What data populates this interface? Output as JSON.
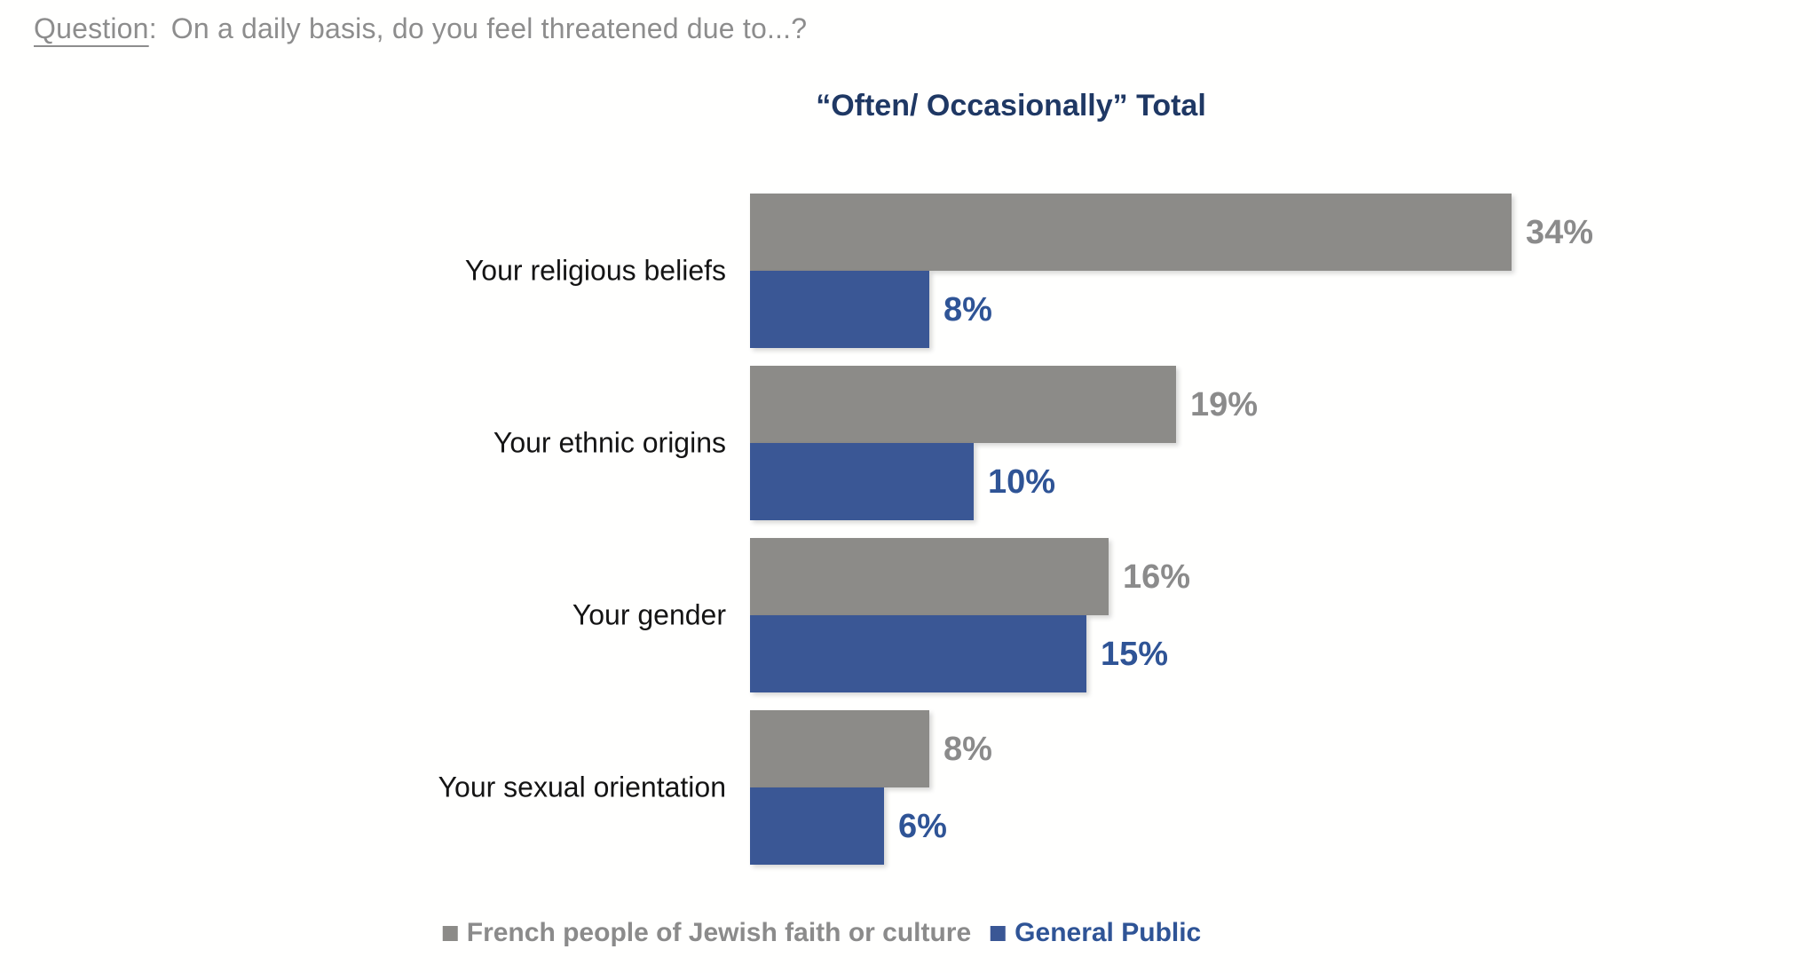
{
  "question": {
    "label": "Question",
    "colon": ":",
    "text": "On a daily basis, do you feel threatened due to...?"
  },
  "chart_data": {
    "type": "bar",
    "orientation": "horizontal",
    "title": "“Often/ Occasionally” Total",
    "title_color": "#1f3864",
    "categories": [
      "Your religious beliefs",
      "Your ethnic origins",
      "Your gender",
      "Your sexual orientation"
    ],
    "series": [
      {
        "name": "French people of Jewish faith or culture",
        "color": "#8c8b88",
        "label_color": "#8b8b8b",
        "values": [
          34,
          19,
          16,
          8
        ],
        "value_labels": [
          "34%",
          "19%",
          "16%",
          "8%"
        ]
      },
      {
        "name": "General Public",
        "color": "#3a5795",
        "label_color": "#2f5496",
        "values": [
          8,
          10,
          15,
          6
        ],
        "value_labels": [
          "8%",
          "10%",
          "15%",
          "6%"
        ]
      }
    ],
    "xlim": [
      0,
      40
    ],
    "grid": false,
    "axes_visible": false,
    "value_suffix": "%",
    "legend_position": "bottom"
  },
  "colors": {
    "question_text": "#8d8d8d",
    "category_label": "#141414",
    "background": "#fffffe"
  }
}
